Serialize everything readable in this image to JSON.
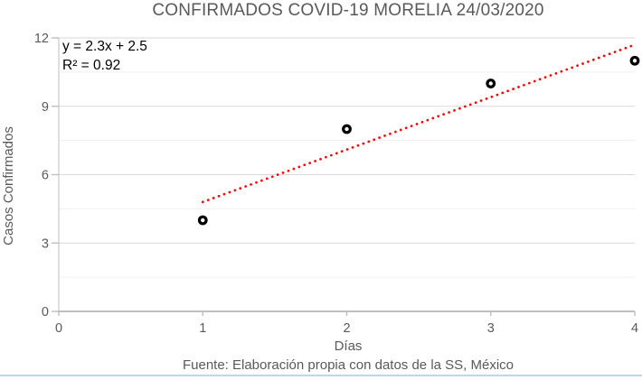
{
  "chart_data": {
    "type": "scatter",
    "title": "CONFIRMADOS COVID-19 MORELIA 24/03/2020",
    "xlabel": "Días",
    "ylabel": "Casos Confirmados",
    "source_note": "Fuente: Elaboración propia con datos de la SS, México",
    "x": [
      1,
      2,
      3,
      4
    ],
    "y": [
      4,
      8,
      10,
      11
    ],
    "xlim": [
      0,
      4
    ],
    "ylim": [
      0,
      12
    ],
    "x_ticks": [
      0,
      1,
      2,
      3,
      4
    ],
    "y_ticks": [
      0,
      3,
      6,
      9,
      12
    ],
    "y_grid_major": [
      3,
      6,
      9,
      12
    ],
    "y_grid_minor": [
      1.5,
      4.5,
      7.5,
      10.5
    ],
    "legend": "none",
    "marker": {
      "shape": "open-circle",
      "color": "#000000",
      "fill": "#ffffff"
    },
    "trendline": {
      "label_equation": "y = 2.3x + 2.5",
      "label_r2": "R² = 0.92",
      "slope": 2.3,
      "intercept": 2.5,
      "x_start": 1,
      "x_end": 4,
      "color": "#ff0000",
      "style": "dotted"
    },
    "colors": {
      "text": "#595959",
      "axis": "#bfbfbf",
      "grid_major": "#d9d9d9",
      "grid_minor": "#f1f1f1",
      "bottom_border": "#bdd7ee"
    }
  }
}
